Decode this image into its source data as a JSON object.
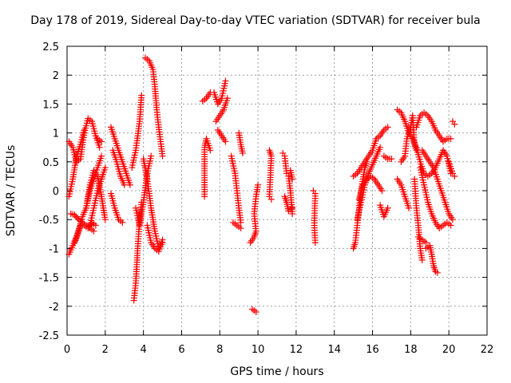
{
  "chart_data": {
    "type": "scatter",
    "title": "Day 178 of 2019, Sidereal Day-to-day VTEC variation (SDTVAR) for receiver bula",
    "xlabel": "GPS time / hours",
    "ylabel": "SDTVAR / TECUs",
    "xlim": [
      0,
      22
    ],
    "ylim": [
      -2.5,
      2.5
    ],
    "xticks": [
      "0",
      "2",
      "4",
      "6",
      "8",
      "10",
      "12",
      "14",
      "16",
      "18",
      "20",
      "22"
    ],
    "yticks": [
      "2.5",
      "2",
      "1.5",
      "1",
      "0.5",
      "0",
      "-0.5",
      "-1",
      "-1.5",
      "-2",
      "-2.5"
    ],
    "grid": true,
    "marker": "+",
    "color": "#ff0000",
    "tracks": [
      [
        [
          0.1,
          0.85
        ],
        [
          0.3,
          0.75
        ],
        [
          0.5,
          0.5
        ],
        [
          0.7,
          0.55
        ],
        [
          0.9,
          1.0
        ],
        [
          1.1,
          1.25
        ],
        [
          1.3,
          1.2
        ],
        [
          1.5,
          0.95
        ],
        [
          1.7,
          0.75
        ]
      ],
      [
        [
          0.1,
          -1.1
        ],
        [
          0.3,
          -0.95
        ],
        [
          0.5,
          -0.8
        ],
        [
          0.7,
          -0.6
        ],
        [
          0.9,
          -0.6
        ],
        [
          1.1,
          -0.65
        ],
        [
          1.3,
          -0.55
        ],
        [
          1.5,
          -0.6
        ]
      ],
      [
        [
          0.1,
          -0.1
        ],
        [
          0.3,
          0.2
        ],
        [
          0.5,
          0.6
        ],
        [
          0.7,
          0.8
        ],
        [
          0.9,
          1.05
        ]
      ],
      [
        [
          0.2,
          -0.4
        ],
        [
          0.4,
          -0.42
        ],
        [
          0.6,
          -0.5
        ],
        [
          0.8,
          -0.55
        ],
        [
          1.0,
          -0.6
        ],
        [
          1.2,
          -0.65
        ],
        [
          1.4,
          -0.7
        ]
      ],
      [
        [
          0.4,
          -0.9
        ],
        [
          0.6,
          -0.7
        ],
        [
          0.8,
          -0.45
        ],
        [
          1.0,
          -0.3
        ],
        [
          1.2,
          0.0
        ],
        [
          1.4,
          0.2
        ],
        [
          1.6,
          0.4
        ],
        [
          1.8,
          0.6
        ]
      ],
      [
        [
          1.0,
          -0.3
        ],
        [
          1.2,
          0.1
        ],
        [
          1.4,
          0.35
        ],
        [
          1.6,
          0.25
        ],
        [
          1.8,
          -0.1
        ],
        [
          2.0,
          -0.5
        ]
      ],
      [
        [
          1.2,
          -0.6
        ],
        [
          1.4,
          -0.3
        ],
        [
          1.6,
          0.0
        ],
        [
          1.8,
          0.2
        ],
        [
          2.0,
          0.4
        ]
      ],
      [
        [
          1.6,
          0.9
        ],
        [
          1.8,
          0.85
        ]
      ],
      [
        [
          2.3,
          1.1
        ],
        [
          2.5,
          0.9
        ],
        [
          2.7,
          0.7
        ],
        [
          2.9,
          0.5
        ],
        [
          3.1,
          0.3
        ],
        [
          3.3,
          0.1
        ]
      ],
      [
        [
          2.3,
          -0.05
        ],
        [
          2.5,
          -0.3
        ],
        [
          2.7,
          -0.5
        ],
        [
          2.9,
          -0.55
        ]
      ],
      [
        [
          2.4,
          0.7
        ],
        [
          2.6,
          0.5
        ],
        [
          2.8,
          0.25
        ],
        [
          3.0,
          0.1
        ]
      ],
      [
        [
          3.5,
          -1.9
        ],
        [
          3.6,
          -1.6
        ],
        [
          3.7,
          -1.0
        ],
        [
          3.8,
          -0.5
        ],
        [
          3.9,
          -0.2
        ]
      ],
      [
        [
          3.4,
          0.4
        ],
        [
          3.6,
          0.7
        ],
        [
          3.8,
          1.2
        ],
        [
          3.9,
          1.65
        ]
      ],
      [
        [
          3.6,
          -0.3
        ],
        [
          3.8,
          -0.6
        ],
        [
          4.0,
          -0.2
        ],
        [
          4.2,
          0.3
        ],
        [
          4.4,
          0.6
        ]
      ],
      [
        [
          4.1,
          2.3
        ],
        [
          4.3,
          2.25
        ],
        [
          4.5,
          2.1
        ],
        [
          4.6,
          1.8
        ],
        [
          4.7,
          1.4
        ],
        [
          4.8,
          1.1
        ],
        [
          4.9,
          0.85
        ],
        [
          5.0,
          0.6
        ]
      ],
      [
        [
          4.0,
          0.55
        ],
        [
          4.2,
          0.2
        ],
        [
          4.4,
          -0.3
        ],
        [
          4.6,
          -0.7
        ],
        [
          4.8,
          -1.0
        ],
        [
          5.0,
          -0.9
        ]
      ],
      [
        [
          4.2,
          -0.6
        ],
        [
          4.4,
          -0.9
        ],
        [
          4.6,
          -1.0
        ],
        [
          4.8,
          -1.05
        ],
        [
          5.0,
          -0.85
        ]
      ],
      [
        [
          7.1,
          1.55
        ],
        [
          7.3,
          1.6
        ],
        [
          7.5,
          1.7
        ]
      ],
      [
        [
          7.2,
          -0.1
        ],
        [
          7.2,
          0.75
        ],
        [
          7.3,
          0.9
        ],
        [
          7.5,
          0.7
        ]
      ],
      [
        [
          7.7,
          1.7
        ],
        [
          7.9,
          1.5
        ],
        [
          8.1,
          1.6
        ],
        [
          8.3,
          1.9
        ]
      ],
      [
        [
          7.8,
          1.2
        ],
        [
          8.0,
          1.3
        ],
        [
          8.2,
          1.4
        ],
        [
          8.4,
          1.6
        ]
      ],
      [
        [
          7.9,
          1.05
        ],
        [
          8.1,
          0.95
        ],
        [
          8.3,
          0.85
        ]
      ],
      [
        [
          8.6,
          0.6
        ],
        [
          8.8,
          0.3
        ],
        [
          8.9,
          0.0
        ],
        [
          9.0,
          -0.3
        ],
        [
          9.1,
          -0.55
        ]
      ],
      [
        [
          8.7,
          -0.55
        ],
        [
          8.9,
          -0.6
        ],
        [
          9.1,
          -0.65
        ]
      ],
      [
        [
          9.0,
          1.0
        ],
        [
          9.1,
          0.8
        ],
        [
          9.2,
          0.65
        ]
      ],
      [
        [
          9.6,
          -0.9
        ],
        [
          9.8,
          -0.8
        ],
        [
          9.9,
          -0.7
        ],
        [
          9.8,
          -0.4
        ],
        [
          9.9,
          -0.1
        ],
        [
          10.0,
          0.1
        ]
      ],
      [
        [
          9.7,
          -2.05
        ],
        [
          9.9,
          -2.1
        ]
      ],
      [
        [
          10.6,
          0.7
        ],
        [
          10.7,
          0.6
        ],
        [
          10.6,
          -0.1
        ],
        [
          10.7,
          -0.15
        ]
      ],
      [
        [
          11.3,
          0.65
        ],
        [
          11.4,
          0.6
        ],
        [
          11.5,
          0.3
        ],
        [
          11.6,
          0.25
        ],
        [
          11.7,
          0.0
        ],
        [
          11.8,
          -0.4
        ]
      ],
      [
        [
          11.4,
          -0.1
        ],
        [
          11.5,
          -0.2
        ],
        [
          11.6,
          -0.35
        ],
        [
          11.8,
          -0.3
        ]
      ],
      [
        [
          11.7,
          0.35
        ],
        [
          11.8,
          0.2
        ]
      ],
      [
        [
          12.9,
          0.0
        ],
        [
          13.0,
          -0.05
        ],
        [
          12.95,
          -0.6
        ],
        [
          13.0,
          -0.9
        ]
      ],
      [
        [
          15.0,
          -1.0
        ],
        [
          15.1,
          -0.9
        ],
        [
          15.2,
          -0.6
        ],
        [
          15.3,
          -0.3
        ],
        [
          15.4,
          0.0
        ],
        [
          15.5,
          0.2
        ],
        [
          15.6,
          0.4
        ],
        [
          15.7,
          0.5
        ]
      ],
      [
        [
          15.0,
          0.25
        ],
        [
          15.2,
          0.3
        ],
        [
          15.4,
          0.4
        ],
        [
          15.6,
          0.5
        ],
        [
          15.8,
          0.6
        ],
        [
          16.0,
          0.7
        ],
        [
          16.2,
          0.9
        ],
        [
          16.4,
          0.95
        ],
        [
          16.6,
          1.05
        ],
        [
          16.8,
          1.1
        ]
      ],
      [
        [
          15.2,
          -0.5
        ],
        [
          15.4,
          -0.2
        ],
        [
          15.6,
          0.1
        ],
        [
          15.8,
          0.3
        ],
        [
          16.0,
          0.45
        ],
        [
          16.2,
          0.6
        ],
        [
          16.4,
          0.75
        ]
      ],
      [
        [
          15.3,
          -0.15
        ],
        [
          15.5,
          0.1
        ],
        [
          15.7,
          0.2
        ],
        [
          15.9,
          0.25
        ],
        [
          16.1,
          0.2
        ],
        [
          16.3,
          0.1
        ],
        [
          16.5,
          0.0
        ]
      ],
      [
        [
          16.4,
          -0.25
        ],
        [
          16.6,
          -0.45
        ],
        [
          16.8,
          -0.3
        ]
      ],
      [
        [
          16.6,
          0.6
        ],
        [
          16.8,
          0.55
        ],
        [
          17.0,
          0.55
        ]
      ],
      [
        [
          17.3,
          1.4
        ],
        [
          17.5,
          1.35
        ],
        [
          17.7,
          1.2
        ],
        [
          17.9,
          1.0
        ],
        [
          18.1,
          0.9
        ],
        [
          18.3,
          0.75
        ],
        [
          18.5,
          0.5
        ],
        [
          18.7,
          0.3
        ],
        [
          18.9,
          0.25
        ],
        [
          19.1,
          0.3
        ],
        [
          19.3,
          0.4
        ],
        [
          19.5,
          0.55
        ],
        [
          19.7,
          0.7
        ],
        [
          19.9,
          0.6
        ],
        [
          20.1,
          0.3
        ]
      ],
      [
        [
          17.5,
          0.5
        ],
        [
          17.7,
          0.6
        ],
        [
          17.8,
          0.9
        ],
        [
          18.0,
          1.1
        ],
        [
          18.1,
          1.3
        ],
        [
          18.2,
          0.8
        ],
        [
          18.3,
          0.7
        ]
      ],
      [
        [
          17.3,
          0.2
        ],
        [
          17.5,
          0.1
        ],
        [
          17.7,
          -0.1
        ],
        [
          17.9,
          -0.3
        ]
      ],
      [
        [
          18.2,
          0.2
        ],
        [
          18.3,
          -0.3
        ],
        [
          18.4,
          -0.6
        ],
        [
          18.5,
          -1.0
        ],
        [
          18.6,
          -1.2
        ]
      ],
      [
        [
          18.3,
          1.1
        ],
        [
          18.5,
          1.3
        ],
        [
          18.7,
          1.35
        ],
        [
          18.9,
          1.3
        ],
        [
          19.1,
          1.2
        ],
        [
          19.3,
          1.05
        ],
        [
          19.5,
          0.95
        ],
        [
          19.7,
          0.85
        ],
        [
          19.9,
          0.9
        ],
        [
          20.1,
          0.9
        ]
      ],
      [
        [
          18.6,
          0.7
        ],
        [
          18.8,
          0.6
        ],
        [
          19.0,
          0.5
        ],
        [
          19.2,
          0.4
        ],
        [
          19.4,
          0.2
        ],
        [
          19.6,
          0.0
        ],
        [
          19.8,
          -0.2
        ],
        [
          20.0,
          -0.4
        ],
        [
          20.2,
          -0.5
        ]
      ],
      [
        [
          18.5,
          0.4
        ],
        [
          18.7,
          0.1
        ],
        [
          18.9,
          -0.2
        ],
        [
          19.1,
          -0.4
        ],
        [
          19.3,
          -0.55
        ],
        [
          19.5,
          -0.65
        ],
        [
          19.7,
          -0.6
        ],
        [
          19.9,
          -0.55
        ],
        [
          20.1,
          -0.6
        ]
      ],
      [
        [
          18.8,
          -1.0
        ],
        [
          19.0,
          -0.95
        ],
        [
          19.1,
          -1.1
        ],
        [
          19.2,
          -1.3
        ],
        [
          19.3,
          -1.4
        ],
        [
          19.4,
          -1.42
        ]
      ],
      [
        [
          18.4,
          -0.8
        ],
        [
          18.6,
          -0.85
        ],
        [
          18.8,
          -0.9
        ]
      ],
      [
        [
          20.2,
          1.2
        ],
        [
          20.3,
          1.15
        ]
      ],
      [
        [
          20.0,
          0.5
        ],
        [
          20.2,
          0.3
        ],
        [
          20.3,
          0.25
        ]
      ]
    ]
  }
}
